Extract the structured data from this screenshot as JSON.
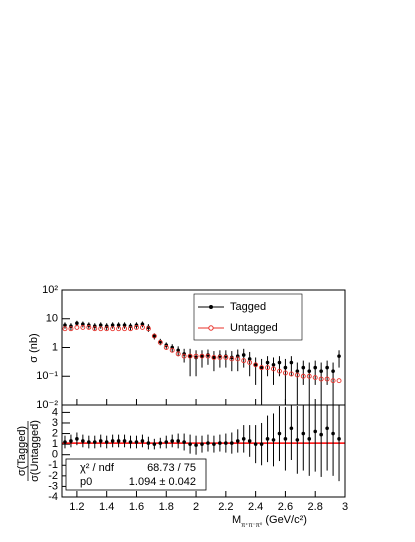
{
  "chart_data": [
    {
      "type": "scatter",
      "log_y": true,
      "ylabel": "σ (nb)",
      "ylim": [
        0.01,
        100
      ],
      "yticks": [
        {
          "value": 100,
          "label": "10²"
        },
        10,
        1,
        {
          "value": 0.1,
          "label": "10⁻¹"
        },
        {
          "value": 0.01,
          "label": "10⁻²"
        }
      ],
      "legend": "top-right",
      "x": [
        1.12,
        1.16,
        1.2,
        1.24,
        1.28,
        1.32,
        1.36,
        1.4,
        1.44,
        1.48,
        1.52,
        1.56,
        1.6,
        1.64,
        1.68,
        1.72,
        1.76,
        1.8,
        1.84,
        1.88,
        1.92,
        1.96,
        2.0,
        2.04,
        2.08,
        2.12,
        2.16,
        2.2,
        2.24,
        2.28,
        2.32,
        2.36,
        2.4,
        2.44,
        2.48,
        2.52,
        2.56,
        2.6,
        2.64,
        2.68,
        2.72,
        2.76,
        2.8,
        2.84,
        2.88,
        2.92,
        2.96
      ],
      "series": [
        {
          "name": "Tagged",
          "color": "#000000",
          "values": [
            6,
            5.5,
            7,
            6.5,
            6,
            5.5,
            6,
            5.5,
            6,
            6,
            6,
            5.5,
            6,
            6.5,
            5,
            2.5,
            1.6,
            1.2,
            1,
            0.8,
            0.6,
            0.5,
            0.45,
            0.5,
            0.55,
            0.45,
            0.5,
            0.5,
            0.45,
            0.5,
            0.55,
            0.4,
            0.25,
            0.2,
            0.3,
            0.25,
            0.3,
            0.2,
            0.3,
            0.15,
            0.2,
            0.15,
            0.2,
            0.15,
            0.2,
            0.15,
            0.5
          ],
          "errors": [
            1.5,
            1.5,
            1.5,
            1.5,
            1.5,
            1.5,
            1.5,
            1.5,
            1.5,
            1.5,
            1.5,
            1.5,
            1.5,
            1.5,
            1.5,
            0.6,
            0.4,
            0.3,
            0.3,
            0.3,
            0.3,
            0.4,
            0.35,
            0.3,
            0.3,
            0.3,
            0.3,
            0.3,
            0.3,
            0.35,
            0.35,
            0.3,
            0.2,
            0.2,
            0.2,
            0.2,
            0.2,
            0.2,
            0.2,
            0.15,
            0.15,
            0.15,
            0.15,
            0.15,
            0.15,
            0.15,
            0.3
          ]
        },
        {
          "name": "Untagged",
          "color": "#e8312a",
          "values": [
            4.5,
            4.5,
            5,
            5,
            5,
            4.5,
            4.5,
            4.5,
            4.5,
            4.5,
            4.5,
            4.5,
            5,
            5,
            4.5,
            2.5,
            1.5,
            1,
            0.8,
            0.6,
            0.5,
            0.5,
            0.5,
            0.5,
            0.5,
            0.45,
            0.45,
            0.45,
            0.4,
            0.4,
            0.35,
            0.3,
            0.25,
            0.2,
            0.2,
            0.18,
            0.15,
            0.13,
            0.12,
            0.11,
            0.1,
            0.1,
            0.09,
            0.08,
            0.08,
            0.07,
            0.07
          ]
        }
      ]
    },
    {
      "type": "scatter",
      "ylabel_top": "σ(Tagged)",
      "ylabel_bottom": "σ(Untagged)",
      "x_label": {
        "text": "M",
        "subscript": "π⁺π⁻π⁰",
        "unit": "(GeV/c²)"
      },
      "xlim": [
        1.1,
        3.0
      ],
      "xticks": [
        1.2,
        1.4,
        1.6,
        1.8,
        2,
        2.2,
        2.4,
        2.6,
        2.8,
        3
      ],
      "ylim": [
        -4,
        4.7
      ],
      "yticks": [
        -4,
        -3,
        -2,
        -1,
        0,
        1,
        2,
        3,
        4
      ],
      "x": [
        1.12,
        1.16,
        1.2,
        1.24,
        1.28,
        1.32,
        1.36,
        1.4,
        1.44,
        1.48,
        1.52,
        1.56,
        1.6,
        1.64,
        1.68,
        1.72,
        1.76,
        1.8,
        1.84,
        1.88,
        1.92,
        1.96,
        2.0,
        2.04,
        2.08,
        2.12,
        2.16,
        2.2,
        2.24,
        2.28,
        2.32,
        2.36,
        2.4,
        2.44,
        2.48,
        2.52,
        2.56,
        2.6,
        2.64,
        2.68,
        2.72,
        2.76,
        2.8,
        2.84,
        2.88,
        2.92,
        2.96
      ],
      "series": [
        {
          "color": "#000000",
          "values": [
            1.2,
            1.3,
            1.5,
            1.3,
            1.2,
            1.2,
            1.3,
            1.2,
            1.3,
            1.3,
            1.3,
            1.2,
            1.2,
            1.3,
            1.1,
            1,
            1.1,
            1.2,
            1.3,
            1.3,
            1.2,
            1,
            0.9,
            1,
            1.1,
            1,
            1.1,
            1.1,
            1.1,
            1.3,
            1.5,
            1.3,
            1,
            1,
            1.5,
            1.4,
            2,
            1.5,
            2.5,
            1.4,
            2,
            1.5,
            2.2,
            1.9,
            2.5,
            2,
            1.5
          ],
          "errors": [
            0.6,
            0.6,
            0.6,
            0.6,
            0.6,
            0.6,
            0.6,
            0.6,
            0.6,
            0.6,
            0.6,
            0.6,
            0.6,
            0.6,
            0.6,
            0.5,
            0.5,
            0.6,
            0.6,
            0.7,
            0.8,
            0.9,
            0.9,
            0.8,
            0.8,
            0.8,
            0.8,
            0.9,
            1,
            1.1,
            1.3,
            1.5,
            1.8,
            2,
            2.2,
            2.5,
            2.6,
            3,
            3,
            3.2,
            3.5,
            3.5,
            3.8,
            4,
            4,
            4,
            4
          ]
        }
      ],
      "fit": {
        "value": 1.094,
        "color": "#ff0000",
        "rows": [
          [
            "χ² / ndf",
            "68.73 / 75"
          ],
          [
            "p0",
            "1.094 ± 0.042"
          ]
        ]
      }
    }
  ]
}
